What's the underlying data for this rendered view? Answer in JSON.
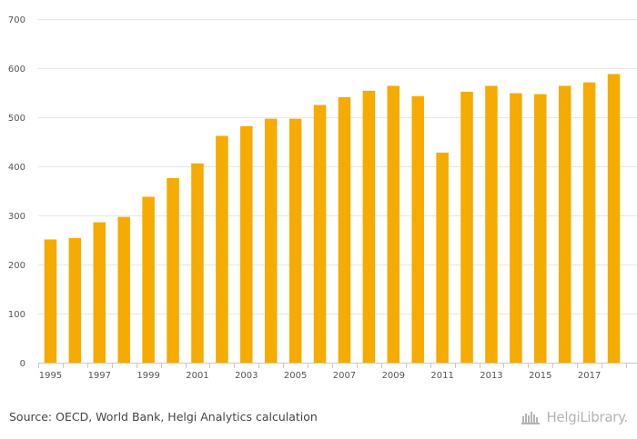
{
  "colors": {
    "bar": "#F5AB00",
    "grid": "#e6e6e6",
    "axis": "#c8c8c8",
    "text": "#555555",
    "brand": "#b4b4b4"
  },
  "chart_data": {
    "type": "bar",
    "categories": [
      "1995",
      "1996",
      "1997",
      "1998",
      "1999",
      "2000",
      "2001",
      "2002",
      "2003",
      "2004",
      "2005",
      "2006",
      "2007",
      "2008",
      "2009",
      "2010",
      "2011",
      "2012",
      "2013",
      "2014",
      "2015",
      "2016",
      "2017",
      "2018"
    ],
    "x_tick_labels": [
      "1995",
      "1997",
      "1999",
      "2001",
      "2003",
      "2005",
      "2007",
      "2009",
      "2011",
      "2013",
      "2015",
      "2017"
    ],
    "values": [
      251,
      254,
      286,
      297,
      338,
      376,
      406,
      462,
      482,
      497,
      497,
      525,
      541,
      554,
      564,
      543,
      428,
      552,
      564,
      549,
      547,
      564,
      571,
      588
    ],
    "y_tick_labels": [
      "0",
      "100",
      "200",
      "300",
      "400",
      "500",
      "600",
      "700"
    ],
    "ylim": [
      0,
      700
    ],
    "grid": true,
    "legend": "none",
    "title": "",
    "xlabel": "",
    "ylabel": ""
  },
  "footer": {
    "source": "Source: OECD, World Bank, Helgi Analytics calculation",
    "brand_icon": "helgi-library-logo-icon",
    "brand_text": "HelgiLibrary."
  }
}
